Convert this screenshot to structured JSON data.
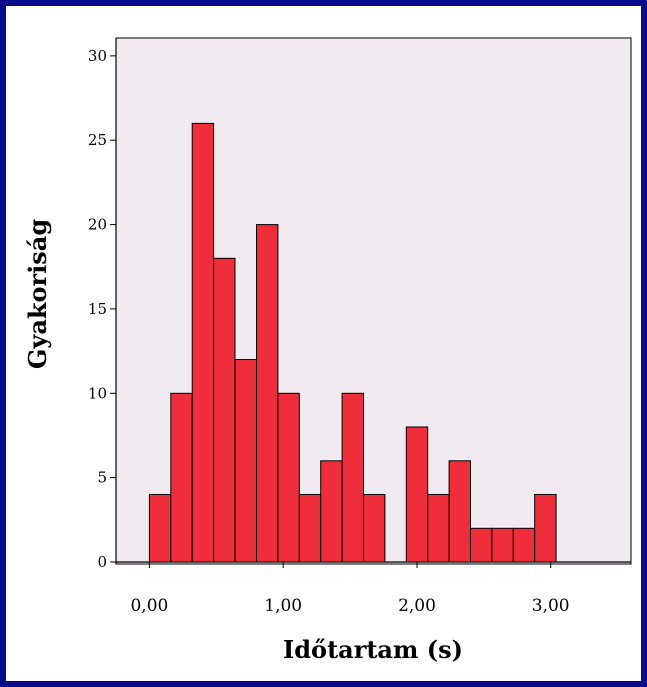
{
  "chart_data": {
    "type": "bar",
    "title": "",
    "xlabel": "Időtartam (s)",
    "ylabel": "Gyakoriság",
    "xlim": [
      -0.25,
      3.6
    ],
    "ylim": [
      0,
      31
    ],
    "bin_width": 0.16,
    "bin_starts": [
      0.0,
      0.16,
      0.32,
      0.48,
      0.64,
      0.8,
      0.96,
      1.12,
      1.28,
      1.44,
      1.6,
      1.76,
      1.92,
      2.08,
      2.24,
      2.4,
      2.56,
      2.72,
      2.88,
      3.04
    ],
    "values": [
      4,
      10,
      26,
      18,
      12,
      20,
      10,
      4,
      6,
      10,
      4,
      0,
      8,
      4,
      6,
      2,
      2,
      2,
      4,
      0
    ],
    "x_ticks": [
      0,
      1,
      2,
      3
    ],
    "x_tick_labels": [
      "0,00",
      "1,00",
      "2,00",
      "3,00"
    ],
    "y_ticks": [
      0,
      5,
      10,
      15,
      20,
      25,
      30
    ],
    "y_tick_labels": [
      "0",
      "5",
      "10",
      "15",
      "20",
      "25",
      "30"
    ],
    "grid": false,
    "colors": {
      "bar": "#ee2e3b",
      "plot_bg": "#f1ebf1",
      "frame": "#0a0a8c"
    }
  }
}
